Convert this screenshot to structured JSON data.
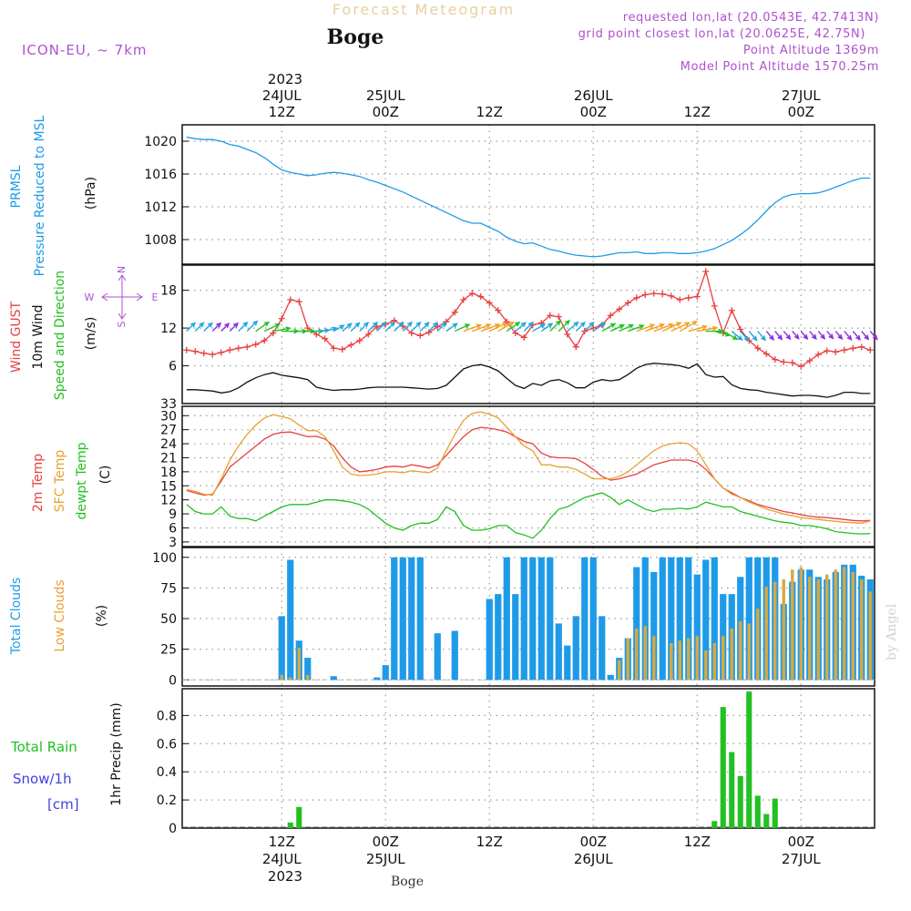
{
  "header": {
    "title": "Forecast Meteogram",
    "location": "Boge",
    "model": "ICON-EU, ~ 7km",
    "requested_point": "requested lon,lat (20.0543E, 42.7413N)",
    "grid_point": "grid point closest lon,lat (20.0625E, 42.75N)",
    "point_altitude": "Point Altitude 1369m",
    "model_altitude": "Model Point Altitude 1570.25m",
    "footer_location": "Boge",
    "watermark": "by Angel"
  },
  "time_axis": {
    "hours_total": 80,
    "start_utc": "2023-07-24T01:00Z",
    "top_year": "2023",
    "ticks": [
      {
        "hour": 11,
        "line1": "24JUL",
        "line2": "12Z",
        "date_label": true
      },
      {
        "hour": 23,
        "line1": "25JUL",
        "line2": "00Z",
        "date_label": true
      },
      {
        "hour": 35,
        "line1": "",
        "line2": "12Z",
        "date_label": false
      },
      {
        "hour": 47,
        "line1": "26JUL",
        "line2": "00Z",
        "date_label": true
      },
      {
        "hour": 59,
        "line1": "",
        "line2": "12Z",
        "date_label": false
      },
      {
        "hour": 71,
        "line1": "27JUL",
        "line2": "00Z",
        "date_label": true
      }
    ]
  },
  "chart_data": [
    {
      "type": "line",
      "id": "pressure",
      "ylabel_lines": [
        "PRMSL",
        "Pressure Reduced to MSL"
      ],
      "unit": "(hPa)",
      "ylim": [
        1005,
        1022
      ],
      "yticks": [
        1008,
        1012,
        1016,
        1020
      ],
      "series": [
        {
          "name": "PRMSL",
          "color": "#1e9be8",
          "values": [
            1020.5,
            1020.3,
            1020.2,
            1020.2,
            1020.0,
            1019.6,
            1019.4,
            1019.0,
            1018.6,
            1018.0,
            1017.2,
            1016.5,
            1016.2,
            1016.0,
            1015.8,
            1015.9,
            1016.1,
            1016.2,
            1016.1,
            1015.9,
            1015.7,
            1015.3,
            1015.0,
            1014.6,
            1014.2,
            1013.8,
            1013.3,
            1012.8,
            1012.3,
            1011.8,
            1011.3,
            1010.8,
            1010.3,
            1010.0,
            1010.0,
            1009.5,
            1009.0,
            1008.3,
            1007.8,
            1007.5,
            1007.6,
            1007.2,
            1006.8,
            1006.6,
            1006.3,
            1006.1,
            1006.0,
            1005.9,
            1006.0,
            1006.2,
            1006.4,
            1006.4,
            1006.5,
            1006.3,
            1006.3,
            1006.4,
            1006.4,
            1006.3,
            1006.3,
            1006.4,
            1006.6,
            1006.9,
            1007.4,
            1007.9,
            1008.6,
            1009.4,
            1010.4,
            1011.5,
            1012.5,
            1013.2,
            1013.5,
            1013.6,
            1013.6,
            1013.7,
            1014.0,
            1014.4,
            1014.8,
            1015.2,
            1015.5,
            1015.5
          ]
        }
      ]
    },
    {
      "type": "line",
      "id": "wind",
      "ylabel_lines": [
        "Wind GUST",
        "10m Wind",
        "Speed and Direction"
      ],
      "unit": "(m/s)",
      "compass": {
        "n": "N",
        "s": "S",
        "e": "E",
        "w": "W"
      },
      "ylim": [
        0,
        22
      ],
      "yticks": [
        6,
        12,
        18
      ],
      "series": [
        {
          "name": "Wind GUST",
          "color": "#e84040",
          "values": [
            8.5,
            8.3,
            8.0,
            7.8,
            8.1,
            8.5,
            8.8,
            9.0,
            9.4,
            10.0,
            11.2,
            13.5,
            16.5,
            16.2,
            12.0,
            11.0,
            10.3,
            8.8,
            8.6,
            9.3,
            10.0,
            11.0,
            12.2,
            12.6,
            13.2,
            12.3,
            11.2,
            10.8,
            11.3,
            12.2,
            13.0,
            14.5,
            16.5,
            17.5,
            17.0,
            16.0,
            14.8,
            13.0,
            11.2,
            10.5,
            12.5,
            12.8,
            14.0,
            13.8,
            11.0,
            9.0,
            11.5,
            12.0,
            12.5,
            14.0,
            15.0,
            16.0,
            16.8,
            17.3,
            17.5,
            17.4,
            17.1,
            16.5,
            16.8,
            17.0,
            21.0,
            15.5,
            11.2,
            14.8,
            11.8,
            10.0,
            8.8,
            7.9,
            7.0,
            6.6,
            6.5,
            5.9,
            6.8,
            7.8,
            8.4,
            8.2,
            8.5,
            8.8,
            9.0,
            8.5
          ]
        },
        {
          "name": "10m Wind",
          "color": "#111111",
          "values": [
            2.2,
            2.2,
            2.1,
            2.0,
            1.7,
            1.9,
            2.5,
            3.4,
            4.1,
            4.6,
            4.9,
            4.5,
            4.3,
            4.1,
            3.8,
            2.6,
            2.3,
            2.1,
            2.2,
            2.2,
            2.3,
            2.5,
            2.6,
            2.6,
            2.6,
            2.6,
            2.5,
            2.4,
            2.3,
            2.4,
            2.9,
            4.2,
            5.5,
            6.0,
            6.2,
            5.8,
            5.2,
            4.0,
            2.9,
            2.4,
            3.2,
            2.9,
            3.6,
            3.8,
            3.3,
            2.5,
            2.5,
            3.4,
            3.8,
            3.6,
            3.8,
            4.6,
            5.6,
            6.2,
            6.4,
            6.3,
            6.2,
            6.0,
            5.6,
            6.3,
            4.6,
            4.2,
            4.3,
            3.0,
            2.4,
            2.2,
            2.1,
            1.8,
            1.6,
            1.4,
            1.2,
            1.3,
            1.3,
            1.2,
            1.0,
            1.3,
            1.8,
            1.8,
            1.6,
            1.6
          ]
        }
      ],
      "arrows": {
        "from_hour": 0,
        "step": 1,
        "dir_deg": [
          225,
          225,
          225,
          225,
          225,
          225,
          225,
          225,
          235,
          245,
          260,
          270,
          270,
          270,
          270,
          265,
          255,
          240,
          230,
          225,
          225,
          225,
          225,
          225,
          225,
          225,
          225,
          225,
          225,
          225,
          235,
          245,
          250,
          250,
          250,
          245,
          240,
          235,
          230,
          225,
          240,
          235,
          225,
          225,
          230,
          225,
          225,
          235,
          240,
          245,
          245,
          250,
          250,
          250,
          250,
          245,
          245,
          240,
          255,
          260,
          270,
          285,
          300,
          310,
          320,
          320,
          320,
          320,
          320,
          320,
          320,
          320,
          320,
          320,
          320,
          320,
          320,
          320,
          320,
          320
        ],
        "color_scale": [
          {
            "max": 2,
            "color": "#8a2be2"
          },
          {
            "max": 3.5,
            "color": "#1ea7e0"
          },
          {
            "max": 5,
            "color": "#22c022"
          },
          {
            "max": 99,
            "color": "#f0a020"
          }
        ]
      }
    },
    {
      "type": "line",
      "id": "temperature",
      "ylabel_lines": [
        "2m Temp",
        "SFC Temp",
        "dewpt Temp"
      ],
      "unit": "(C)",
      "ylim": [
        2,
        32
      ],
      "yticks": [
        3,
        6,
        9,
        12,
        15,
        18,
        21,
        24,
        27,
        30
      ],
      "top_label": "33",
      "series": [
        {
          "name": "2m Temp",
          "color": "#e84040",
          "values": [
            14.0,
            13.5,
            13.0,
            13.2,
            16.0,
            19.0,
            20.5,
            22.0,
            23.5,
            25.0,
            26.0,
            26.4,
            26.5,
            26.0,
            25.5,
            25.6,
            25.0,
            23.5,
            21.0,
            19.0,
            18.0,
            18.2,
            18.5,
            19.0,
            19.2,
            19.0,
            19.5,
            19.2,
            18.8,
            19.5,
            21.5,
            23.5,
            25.5,
            27.0,
            27.5,
            27.3,
            27.0,
            26.5,
            25.5,
            24.5,
            24.0,
            22.0,
            21.2,
            21.0,
            21.0,
            20.8,
            19.8,
            18.5,
            17.0,
            16.2,
            16.5,
            17.0,
            17.5,
            18.5,
            19.5,
            20.0,
            20.5,
            20.5,
            20.5,
            20.0,
            18.5,
            16.5,
            14.5,
            13.5,
            12.5,
            11.8,
            11.0,
            10.5,
            10.0,
            9.5,
            9.2,
            8.8,
            8.5,
            8.3,
            8.2,
            8.0,
            7.8,
            7.6,
            7.5,
            7.6
          ]
        },
        {
          "name": "SFC Temp",
          "color": "#e8a030",
          "values": [
            14.2,
            13.8,
            13.2,
            13.0,
            16.5,
            20.5,
            23.5,
            26.0,
            28.0,
            29.5,
            30.2,
            29.8,
            29.3,
            28.0,
            26.8,
            26.8,
            25.5,
            22.5,
            19.0,
            17.5,
            17.2,
            17.3,
            17.5,
            18.0,
            18.0,
            17.8,
            18.2,
            18.0,
            17.8,
            18.8,
            22.5,
            26.0,
            29.0,
            30.5,
            30.8,
            30.3,
            29.5,
            27.5,
            25.5,
            23.5,
            22.5,
            19.5,
            19.5,
            19.0,
            19.0,
            18.5,
            17.5,
            16.5,
            16.5,
            16.5,
            17.0,
            18.0,
            19.5,
            21.0,
            22.5,
            23.5,
            24.0,
            24.2,
            24.0,
            22.5,
            19.5,
            16.5,
            14.5,
            13.2,
            12.5,
            11.5,
            10.8,
            10.0,
            9.5,
            9.0,
            8.6,
            8.2,
            8.0,
            7.8,
            7.6,
            7.4,
            7.2,
            7.1,
            7.0,
            7.5
          ]
        },
        {
          "name": "dewpt Temp",
          "color": "#22c022",
          "values": [
            11.0,
            9.5,
            9.0,
            9.0,
            10.5,
            8.5,
            8.0,
            8.0,
            7.5,
            8.5,
            9.5,
            10.5,
            11.0,
            11.0,
            11.0,
            11.5,
            12.0,
            12.0,
            11.8,
            11.5,
            11.0,
            10.0,
            8.5,
            7.0,
            6.0,
            5.5,
            6.5,
            7.0,
            7.0,
            7.8,
            10.5,
            9.5,
            6.5,
            5.5,
            5.5,
            5.8,
            6.5,
            6.5,
            5.0,
            4.5,
            3.8,
            5.5,
            8.0,
            10.0,
            10.5,
            11.5,
            12.5,
            13.0,
            13.5,
            12.5,
            11.0,
            12.0,
            11.0,
            10.0,
            9.5,
            10.0,
            10.0,
            10.2,
            10.0,
            10.5,
            11.5,
            11.0,
            10.5,
            10.5,
            9.5,
            9.0,
            8.5,
            8.0,
            7.5,
            7.2,
            7.0,
            6.5,
            6.5,
            6.2,
            5.8,
            5.2,
            5.0,
            4.8,
            4.7,
            4.8
          ]
        }
      ]
    },
    {
      "type": "bar",
      "id": "clouds",
      "ylabel_lines": [
        "Total Clouds",
        "Low Clouds"
      ],
      "unit": "(%)",
      "ylim": [
        -5,
        108
      ],
      "yticks": [
        0,
        25,
        50,
        75,
        100
      ],
      "series": [
        {
          "name": "Total Clouds",
          "color": "#1e9be8",
          "values": [
            0,
            0,
            0,
            0,
            0,
            0,
            0,
            0,
            0,
            0,
            0,
            52,
            98,
            32,
            18,
            0,
            0,
            3,
            0,
            0,
            0,
            0,
            2,
            12,
            100,
            100,
            100,
            100,
            0,
            38,
            0,
            40,
            0,
            0,
            0,
            66,
            70,
            100,
            70,
            100,
            100,
            100,
            100,
            46,
            28,
            52,
            100,
            100,
            52,
            4,
            18,
            34,
            92,
            100,
            88,
            100,
            100,
            100,
            100,
            86,
            98,
            100,
            70,
            70,
            84,
            100,
            100,
            100,
            100,
            62,
            80,
            90,
            90,
            84,
            82,
            88,
            94,
            94,
            85,
            82
          ]
        },
        {
          "name": "Low Clouds",
          "color": "#d8a840",
          "values": [
            0,
            0,
            0,
            0,
            0,
            0,
            0,
            0,
            0,
            0,
            0,
            4,
            2,
            26,
            4,
            0,
            0,
            0,
            0,
            0,
            0,
            0,
            0,
            0,
            0,
            0,
            0,
            0,
            0,
            0,
            0,
            0,
            0,
            0,
            0,
            0,
            0,
            0,
            0,
            0,
            0,
            0,
            0,
            0,
            0,
            0,
            0,
            0,
            0,
            0,
            16,
            34,
            42,
            44,
            36,
            0,
            30,
            32,
            34,
            36,
            24,
            30,
            36,
            42,
            48,
            46,
            58,
            76,
            80,
            82,
            90,
            92,
            84,
            82,
            86,
            90,
            92,
            88,
            82,
            72
          ]
        }
      ]
    },
    {
      "type": "bar",
      "id": "precip",
      "ylabel_lines": [
        "1hr Precip (mm)"
      ],
      "left_labels": [
        "Total   Rain",
        "Snow/1h",
        "[cm]"
      ],
      "ylim": [
        0,
        0.99
      ],
      "yticks": [
        0,
        0.2,
        0.4,
        0.6,
        0.8
      ],
      "ytick_labels": [
        "0",
        "0.2",
        "0.4",
        "0.6",
        "0.8"
      ],
      "series": [
        {
          "name": "Total Rain",
          "color": "#22c022",
          "values": [
            0,
            0,
            0,
            0,
            0,
            0,
            0,
            0,
            0,
            0,
            0,
            0,
            0.04,
            0.15,
            0,
            0,
            0,
            0,
            0,
            0,
            0,
            0,
            0,
            0,
            0,
            0,
            0,
            0,
            0,
            0,
            0,
            0,
            0,
            0,
            0,
            0,
            0,
            0,
            0,
            0,
            0,
            0,
            0,
            0,
            0,
            0,
            0,
            0,
            0,
            0,
            0,
            0,
            0,
            0,
            0,
            0,
            0,
            0,
            0,
            0,
            0,
            0.05,
            0.86,
            0.54,
            0.37,
            0.97,
            0.23,
            0.1,
            0.21,
            0,
            0,
            0,
            0,
            0,
            0,
            0,
            0,
            0,
            0,
            0
          ]
        }
      ]
    }
  ]
}
